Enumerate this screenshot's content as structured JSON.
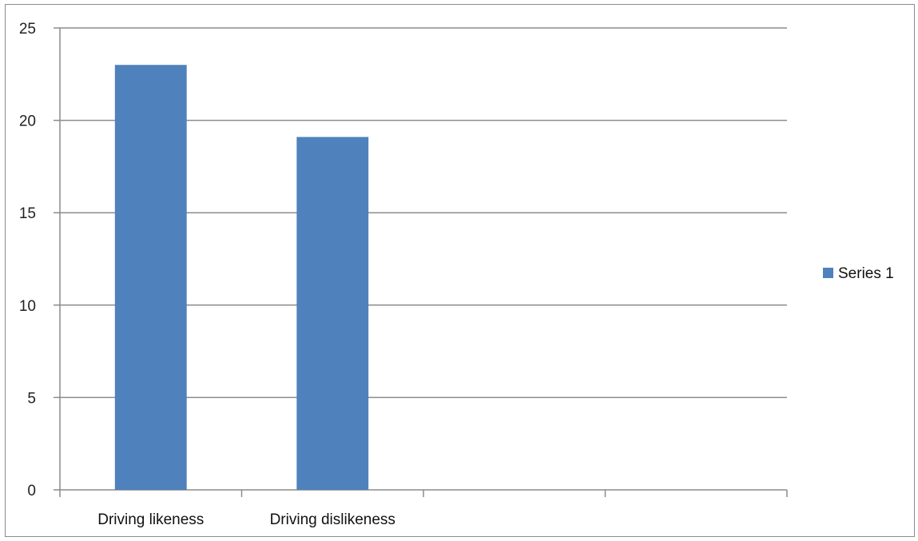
{
  "chart_data": {
    "type": "bar",
    "title": "",
    "xlabel": "",
    "ylabel": "",
    "categories": [
      "Driving likeness",
      "Driving dislikeness",
      "",
      ""
    ],
    "series": [
      {
        "name": "Series 1",
        "values": [
          23,
          19.1,
          null,
          null
        ],
        "color": "#4f81bd"
      }
    ],
    "ylim": [
      0,
      25
    ],
    "yticks": [
      "0",
      "5",
      "10",
      "15",
      "20",
      "25"
    ],
    "grid": true,
    "legend_position": "right"
  },
  "colors": {
    "bar": "#4f81bd",
    "grid": "#8c8c8c",
    "axis": "#8c8c8c",
    "frame": "#8c8c8c"
  }
}
